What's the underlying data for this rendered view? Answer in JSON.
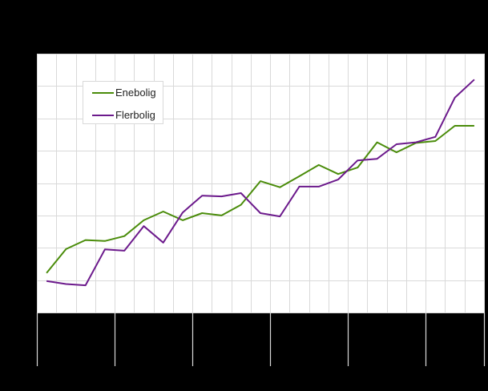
{
  "chart_data": {
    "type": "line",
    "title": "",
    "xlabel": "",
    "ylabel": "",
    "x_major_ticks_every": 4,
    "x_count": 23,
    "ylim_gridunits": [
      0,
      8
    ],
    "grid": true,
    "legend_position": "upper-left (inside plot)",
    "series": [
      {
        "name": "Enebolig",
        "color": "#4a8c0a",
        "values": [
          1.22,
          1.96,
          2.24,
          2.21,
          2.36,
          2.85,
          3.12,
          2.85,
          3.07,
          3.0,
          3.33,
          4.06,
          3.87,
          4.21,
          4.56,
          4.28,
          4.48,
          5.26,
          4.95,
          5.24,
          5.3,
          5.77,
          5.77
        ]
      },
      {
        "name": "Flerbolig",
        "color": "#6c1a8c",
        "values": [
          0.97,
          0.88,
          0.84,
          1.95,
          1.91,
          2.67,
          2.16,
          3.09,
          3.61,
          3.59,
          3.69,
          3.07,
          2.97,
          3.89,
          3.89,
          4.11,
          4.7,
          4.75,
          5.2,
          5.26,
          5.43,
          6.64,
          7.2
        ]
      }
    ]
  },
  "legend": {
    "items": [
      {
        "label": "Enebolig",
        "color": "#4a8c0a"
      },
      {
        "label": "Flerbolig",
        "color": "#6c1a8c"
      }
    ]
  },
  "colors": {
    "background": "#000000",
    "plot_background": "#ffffff",
    "grid": "#d9d9d9"
  }
}
